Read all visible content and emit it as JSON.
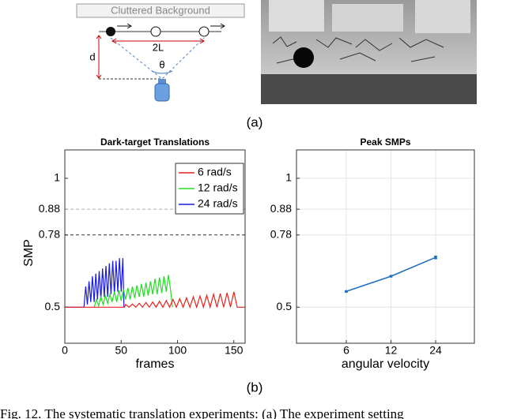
{
  "figure": {
    "panel_a_label": "(a)",
    "panel_b_label": "(b)",
    "caption": "Fig. 12.  The systematic translation experiments: (a) The experiment setting"
  },
  "diagram": {
    "background_label": "Cluttered Background",
    "width_label": "2L",
    "distance_label": "d",
    "angle_label": "θ"
  },
  "chart_data": [
    {
      "type": "line",
      "title": "Dark-target Translations",
      "x_label": "frames",
      "y_label": "SMP",
      "xlim": [
        0,
        160
      ],
      "ylim": [
        0.36,
        1.11
      ],
      "xticks": [
        0,
        50,
        100,
        150
      ],
      "yticks": [
        0.5,
        0.78,
        0.88,
        1
      ],
      "reference_lines": [
        {
          "value": 0.88,
          "color": "#b0b0b0"
        },
        {
          "value": 0.78,
          "color": "#333333"
        }
      ],
      "legend": "upper right",
      "series": [
        {
          "name": "6 rad/s",
          "color": "#e8221c",
          "x": [
            0,
            53,
            54,
            57,
            60,
            63,
            66,
            69,
            72,
            75,
            78,
            81,
            84,
            87,
            90,
            93,
            96,
            99,
            102,
            105,
            108,
            111,
            114,
            117,
            120,
            123,
            126,
            129,
            132,
            135,
            138,
            141,
            144,
            147,
            150,
            153,
            160
          ],
          "values": [
            0.5,
            0.5,
            0.51,
            0.5,
            0.512,
            0.5,
            0.515,
            0.5,
            0.518,
            0.5,
            0.52,
            0.5,
            0.523,
            0.5,
            0.526,
            0.5,
            0.53,
            0.5,
            0.533,
            0.5,
            0.536,
            0.5,
            0.54,
            0.5,
            0.543,
            0.5,
            0.546,
            0.5,
            0.55,
            0.5,
            0.553,
            0.5,
            0.556,
            0.5,
            0.56,
            0.5,
            0.5
          ]
        },
        {
          "name": "12 rad/s",
          "color": "#22dd22",
          "x": [
            26,
            28,
            30,
            32,
            34,
            36,
            38,
            40,
            42,
            44,
            46,
            48,
            50,
            52,
            54,
            56,
            58,
            60,
            62,
            64,
            66,
            68,
            70,
            72,
            74,
            76,
            78,
            80,
            82,
            84,
            86,
            88,
            90,
            92,
            94,
            95.5
          ],
          "values": [
            0.5,
            0.53,
            0.505,
            0.54,
            0.51,
            0.545,
            0.515,
            0.55,
            0.52,
            0.56,
            0.52,
            0.565,
            0.525,
            0.57,
            0.53,
            0.575,
            0.53,
            0.58,
            0.535,
            0.585,
            0.54,
            0.59,
            0.54,
            0.595,
            0.545,
            0.6,
            0.55,
            0.61,
            0.55,
            0.615,
            0.555,
            0.62,
            0.56,
            0.625,
            0.56,
            0.5
          ]
        },
        {
          "name": "24 rad/s",
          "color": "#1a1ae0",
          "x": [
            0,
            17,
            18.5,
            20,
            21.5,
            23,
            24.5,
            26,
            27.5,
            29,
            30.5,
            32,
            33.5,
            35,
            36.5,
            38,
            39.5,
            41,
            42.5,
            44,
            45.5,
            47,
            48.5,
            50,
            51.5,
            52.5
          ],
          "values": [
            0.5,
            0.5,
            0.58,
            0.51,
            0.6,
            0.52,
            0.62,
            0.52,
            0.63,
            0.53,
            0.64,
            0.53,
            0.65,
            0.54,
            0.66,
            0.54,
            0.67,
            0.55,
            0.68,
            0.55,
            0.68,
            0.56,
            0.69,
            0.56,
            0.69,
            0.5
          ]
        }
      ]
    },
    {
      "type": "errorbar",
      "title": "Peak SMPs",
      "x_label": "angular velocity",
      "categories": [
        "6",
        "12",
        "24"
      ],
      "values": [
        0.561,
        0.62,
        0.693
      ],
      "errors": [
        0.002,
        0.002,
        0.005
      ],
      "color": "#1f6fbf",
      "ylim": [
        0.36,
        1.11
      ],
      "yticks": [
        0.5,
        0.78,
        0.88,
        1
      ],
      "grid": true
    }
  ]
}
